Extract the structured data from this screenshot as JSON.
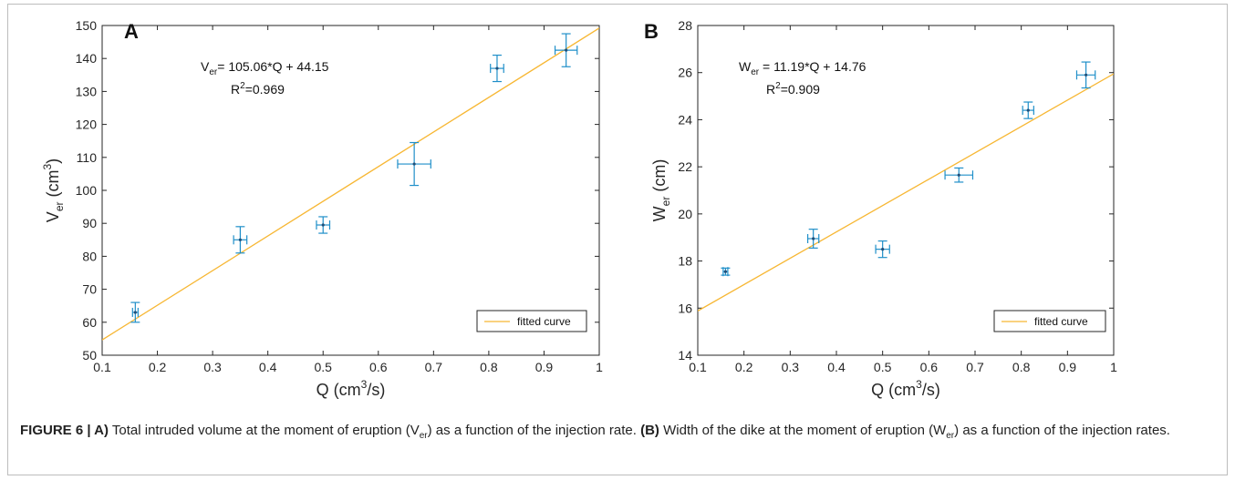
{
  "chart_data": [
    {
      "panel_label": "A",
      "type": "scatter",
      "xlabel_main": "Q (cm",
      "xlabel_sup": "3",
      "xlabel_tail": "/s)",
      "ylabel_main": "V",
      "ylabel_sub": "er",
      "ylabel_unit_main": " (cm",
      "ylabel_unit_sup": "3",
      "ylabel_unit_tail": ")",
      "xlim": [
        0.1,
        1.0
      ],
      "ylim": [
        50,
        150
      ],
      "xticks": [
        0.1,
        0.2,
        0.3,
        0.4,
        0.5,
        0.6,
        0.7,
        0.8,
        0.9,
        1.0
      ],
      "xtick_labels": [
        "0.1",
        "0.2",
        "0.3",
        "0.4",
        "0.5",
        "0.6",
        "0.7",
        "0.8",
        "0.9",
        "1"
      ],
      "yticks": [
        50,
        60,
        70,
        80,
        90,
        100,
        110,
        120,
        130,
        140,
        150
      ],
      "ytick_labels": [
        "50",
        "60",
        "70",
        "80",
        "90",
        "100",
        "110",
        "120",
        "130",
        "140",
        "150"
      ],
      "points": [
        {
          "x": 0.16,
          "y": 63,
          "xerr": 0.005,
          "yerr": 3
        },
        {
          "x": 0.35,
          "y": 85,
          "xerr": 0.012,
          "yerr": 4
        },
        {
          "x": 0.5,
          "y": 89.5,
          "xerr": 0.012,
          "yerr": 2.5
        },
        {
          "x": 0.665,
          "y": 108,
          "xerr": 0.03,
          "yerr": 6.5
        },
        {
          "x": 0.815,
          "y": 137,
          "xerr": 0.012,
          "yerr": 4
        },
        {
          "x": 0.94,
          "y": 142.5,
          "xerr": 0.02,
          "yerr": 5
        }
      ],
      "fit": {
        "slope": 105.06,
        "intercept": 44.15
      },
      "eq_sym": "V",
      "eq_sub": "er",
      "eq_rest": "= 105.06*Q + 44.15",
      "r2_main": "R",
      "r2_sup": "2",
      "r2_rest": "=0.969",
      "legend_label": "fitted curve",
      "legend_position": "bottom-right",
      "colors": {
        "points": "#1f8fc9",
        "fit": "#f7b733"
      }
    },
    {
      "panel_label": "B",
      "type": "scatter",
      "xlabel_main": "Q (cm",
      "xlabel_sup": "3",
      "xlabel_tail": "/s)",
      "ylabel_main": "W",
      "ylabel_sub": "er",
      "ylabel_unit_main": " (cm)",
      "ylabel_unit_sup": "",
      "ylabel_unit_tail": "",
      "xlim": [
        0.1,
        1.0
      ],
      "ylim": [
        14,
        28
      ],
      "xticks": [
        0.1,
        0.2,
        0.3,
        0.4,
        0.5,
        0.6,
        0.7,
        0.8,
        0.9,
        1.0
      ],
      "xtick_labels": [
        "0.1",
        "0.2",
        "0.3",
        "0.4",
        "0.5",
        "0.6",
        "0.7",
        "0.8",
        "0.9",
        "1"
      ],
      "yticks": [
        14,
        16,
        18,
        20,
        22,
        24,
        26,
        28
      ],
      "ytick_labels": [
        "14",
        "16",
        "18",
        "20",
        "22",
        "24",
        "26",
        "28"
      ],
      "points": [
        {
          "x": 0.16,
          "y": 17.55,
          "xerr": 0.005,
          "yerr": 0.15
        },
        {
          "x": 0.35,
          "y": 18.95,
          "xerr": 0.012,
          "yerr": 0.4
        },
        {
          "x": 0.5,
          "y": 18.5,
          "xerr": 0.015,
          "yerr": 0.35
        },
        {
          "x": 0.665,
          "y": 21.65,
          "xerr": 0.03,
          "yerr": 0.3
        },
        {
          "x": 0.815,
          "y": 24.4,
          "xerr": 0.012,
          "yerr": 0.35
        },
        {
          "x": 0.94,
          "y": 25.9,
          "xerr": 0.02,
          "yerr": 0.55
        }
      ],
      "fit": {
        "slope": 11.19,
        "intercept": 14.76
      },
      "eq_sym": "W",
      "eq_sub": "er",
      "eq_rest": " = 11.19*Q + 14.76",
      "r2_main": "R",
      "r2_sup": "2",
      "r2_rest": "=0.909",
      "legend_label": "fitted curve",
      "legend_position": "bottom-right",
      "colors": {
        "points": "#1f8fc9",
        "fit": "#f7b733"
      }
    }
  ],
  "caption": {
    "label": "FIGURE 6 | A)",
    "part1": " Total intruded volume at the moment of eruption (V",
    "part1_sub": "er",
    "part2": ") as a function of the injection rate. ",
    "label_b": "(B)",
    "part3": " Width of the dike at the moment of eruption (W",
    "part3_sub": "er",
    "part4": ") as a function of the injection rates."
  }
}
